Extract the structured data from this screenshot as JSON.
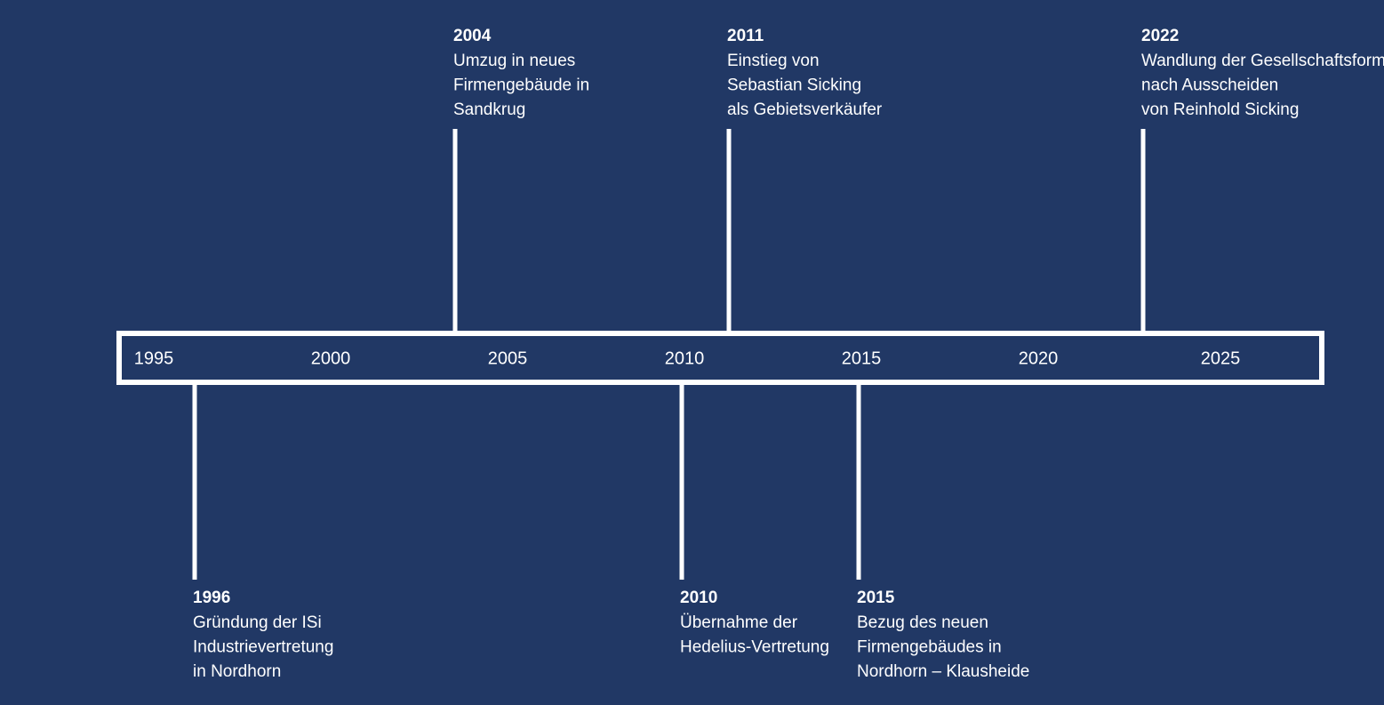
{
  "axis": {
    "labels": [
      "1995",
      "2000",
      "2005",
      "2010",
      "2015",
      "2020",
      "2025"
    ]
  },
  "events": [
    {
      "year": "1996",
      "lines": [
        "Gründung der ISi",
        "Industrievertretung",
        "in Nordhorn"
      ]
    },
    {
      "year": "2004",
      "lines": [
        "Umzug in neues",
        "Firmengebäude in",
        "Sandkrug"
      ]
    },
    {
      "year": "2010",
      "lines": [
        "Übernahme der",
        "Hedelius-Vertretung"
      ]
    },
    {
      "year": "2011",
      "lines": [
        "Einstieg von",
        "Sebastian Sicking",
        "als Gebietsverkäufer"
      ]
    },
    {
      "year": "2015",
      "lines": [
        "Bezug des neuen",
        "Firmengebäudes in",
        "Nordhorn – Klausheide"
      ]
    },
    {
      "year": "2022",
      "lines": [
        "Wandlung der Gesellschaftsform",
        "nach Ausscheiden",
        "von Reinhold Sicking"
      ]
    }
  ]
}
